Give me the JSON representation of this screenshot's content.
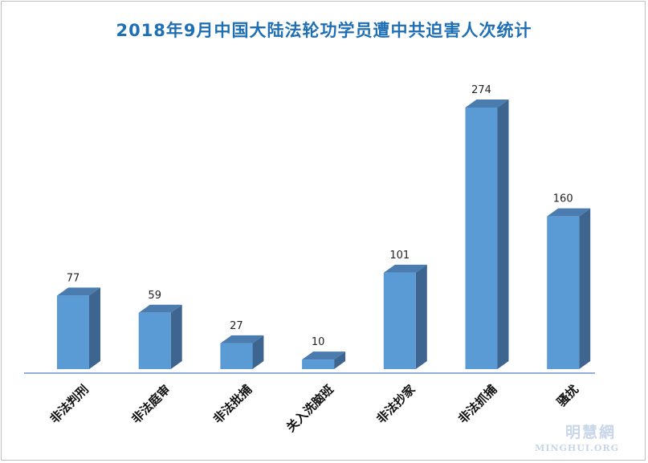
{
  "chart_data": {
    "type": "bar",
    "title": "2018年9月中国大陆法轮功学员遭中共迫害人次统计",
    "categories": [
      "非法判刑",
      "非法庭审",
      "非法批捕",
      "关入洗脑班",
      "非法抄家",
      "非法抓捕",
      "骚扰"
    ],
    "values": [
      77,
      59,
      27,
      10,
      101,
      274,
      160
    ],
    "ylim": [
      0,
      274
    ],
    "grid": false,
    "legend": "none",
    "colors": {
      "front": "#5b9bd5",
      "side": "#3d6590",
      "top": "#4a7cb0",
      "axis": "#4f81bd",
      "title": "#1f6fb5"
    }
  },
  "watermark": {
    "cn": "明慧網",
    "en": "MINGHUI.ORG"
  }
}
